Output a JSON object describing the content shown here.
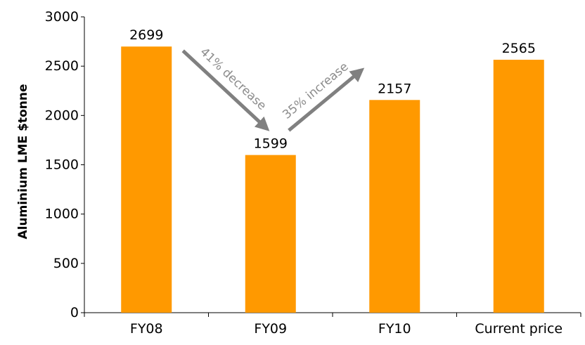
{
  "chart_data": {
    "type": "bar",
    "categories": [
      "FY08",
      "FY09",
      "FY10",
      "Current price"
    ],
    "values": [
      2699,
      1599,
      2157,
      2565
    ],
    "data_labels": [
      "2699",
      "1599",
      "2157",
      "2565"
    ],
    "xlabel": "",
    "ylabel": "Aluminium LME $tonne",
    "ylim": [
      0,
      3000
    ],
    "yticks": [
      "0",
      "500",
      "1000",
      "1500",
      "2000",
      "2500",
      "3000"
    ],
    "grid": false,
    "legend": "none",
    "bar_color": "#ff9900",
    "annotations": [
      {
        "text": "41% decrease",
        "from": "FY08",
        "to": "FY09",
        "direction": "down"
      },
      {
        "text": "35% increase",
        "from": "FY09",
        "to": "FY10",
        "direction": "up"
      }
    ],
    "annotation_color": "#808080"
  }
}
